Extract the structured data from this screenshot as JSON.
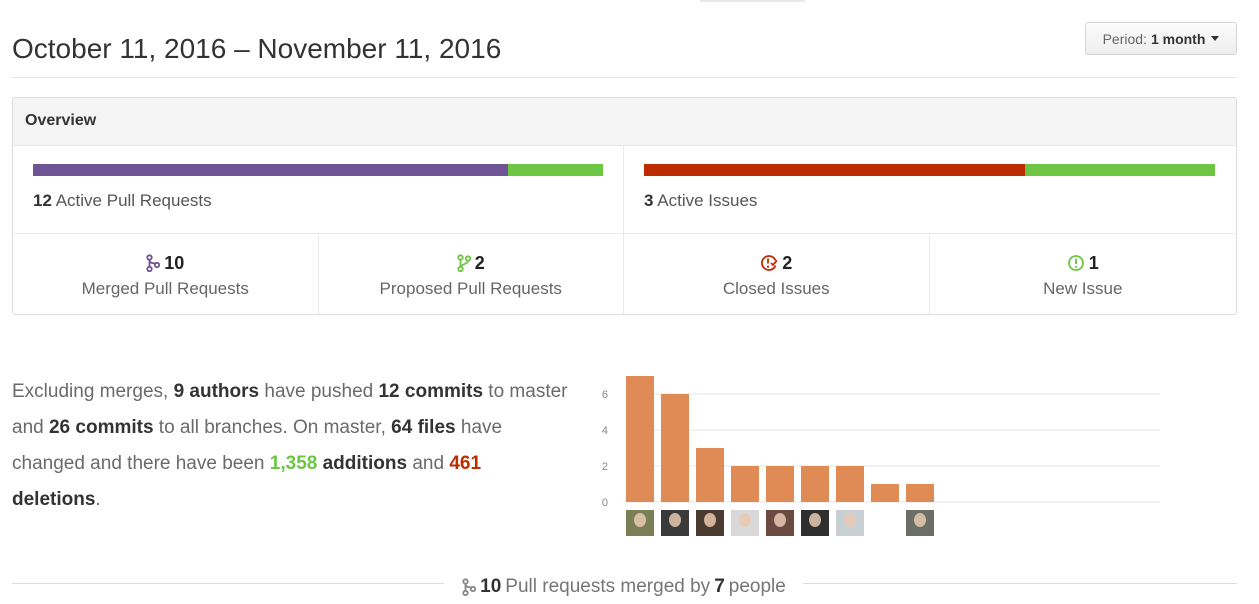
{
  "header": {
    "date_range": "October 11, 2016 – November 11, 2016",
    "period_label": "Period:",
    "period_value": "1 month"
  },
  "overview": {
    "title": "Overview",
    "pull_requests": {
      "count": "12",
      "label": "Active Pull Requests",
      "merged_fraction": 0.833,
      "colors": {
        "merged": "#6e5494",
        "proposed": "#6cc644"
      }
    },
    "issues": {
      "count": "3",
      "label": "Active Issues",
      "closed_fraction": 0.667,
      "colors": {
        "closed": "#bd2c00",
        "new": "#6cc644"
      }
    },
    "stats": [
      {
        "icon": "git-merge-icon",
        "value": "10",
        "label": "Merged Pull Requests",
        "color": "#6e5494"
      },
      {
        "icon": "git-pull-request-icon",
        "value": "2",
        "label": "Proposed Pull Requests",
        "color": "#6cc644"
      },
      {
        "icon": "issue-closed-icon",
        "value": "2",
        "label": "Closed Issues",
        "color": "#bd2c00"
      },
      {
        "icon": "issue-opened-icon",
        "value": "1",
        "label": "New Issue",
        "color": "#6cc644"
      }
    ]
  },
  "narrative": {
    "p1": "Excluding merges, ",
    "authors": "9 authors",
    "p2": " have pushed ",
    "commits_master": "12 commits",
    "p3": " to master and ",
    "commits_all": "26 commits",
    "p4": " to all branches. On master, ",
    "files": "64 files",
    "p5": " have changed and there have been ",
    "additions_num": "1,358",
    "additions_word": "additions",
    "p6": " and ",
    "deletions_num": "461",
    "deletions_word": "deletions",
    "p7": "."
  },
  "chart_data": {
    "type": "bar",
    "categories": [
      "author-1",
      "author-2",
      "author-3",
      "author-4",
      "author-5",
      "author-6",
      "author-7",
      "author-8",
      "author-9"
    ],
    "values": [
      7,
      6,
      3,
      2,
      2,
      2,
      2,
      1,
      1
    ],
    "ylim": [
      0,
      7
    ],
    "yticks": [
      "0",
      "2",
      "4",
      "6"
    ],
    "grid": true,
    "bar_color": "#e08a55",
    "avatars": [
      {
        "name": "avatar-1",
        "bg": "#7a7f56"
      },
      {
        "name": "avatar-2",
        "bg": "#3a3a3a"
      },
      {
        "name": "avatar-3",
        "bg": "#4a3a30"
      },
      {
        "name": "avatar-4",
        "bg": "#d8d8d8"
      },
      {
        "name": "avatar-5",
        "bg": "#6b4a42"
      },
      {
        "name": "avatar-6",
        "bg": "#2f2f2f"
      },
      {
        "name": "avatar-7",
        "bg": "#c9d0d4"
      },
      {
        "name": "avatar-8",
        "bg": ""
      },
      {
        "name": "avatar-9",
        "bg": "#6a6e66"
      }
    ]
  },
  "footer": {
    "count": "10",
    "text1": "Pull requests merged by",
    "people": "7",
    "text2": "people"
  }
}
